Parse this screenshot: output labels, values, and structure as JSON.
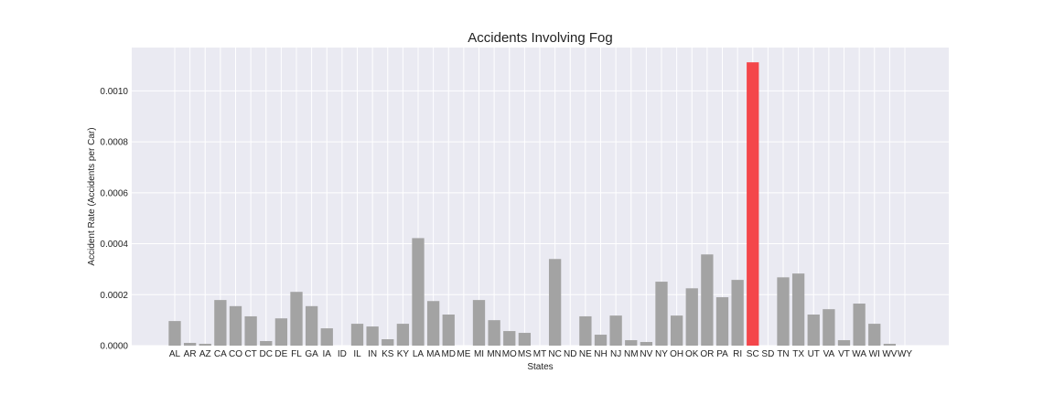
{
  "chart_data": {
    "type": "bar",
    "title": "Accidents Involving Fog",
    "xlabel": "States",
    "ylabel": "Accident Rate (Accidents per Car)",
    "ylim": [
      0,
      0.00117
    ],
    "yticks": [
      0,
      0.0002,
      0.0004,
      0.0006,
      0.0008,
      0.001
    ],
    "ytick_labels": [
      "0.0000",
      "0.0002",
      "0.0004",
      "0.0006",
      "0.0008",
      "0.0010"
    ],
    "grid": true,
    "categories": [
      "AL",
      "AR",
      "AZ",
      "CA",
      "CO",
      "CT",
      "DC",
      "DE",
      "FL",
      "GA",
      "IA",
      "ID",
      "IL",
      "IN",
      "KS",
      "KY",
      "LA",
      "MA",
      "MD",
      "ME",
      "MI",
      "MN",
      "MO",
      "MS",
      "MT",
      "NC",
      "ND",
      "NE",
      "NH",
      "NJ",
      "NM",
      "NV",
      "NY",
      "OH",
      "OK",
      "OR",
      "PA",
      "RI",
      "SC",
      "SD",
      "TN",
      "TX",
      "UT",
      "VA",
      "VT",
      "WA",
      "WI",
      "WV",
      "WY"
    ],
    "values": [
      9.65e-05,
      1.07e-05,
      7.1e-06,
      0.000179,
      0.000155,
      0.000115,
      1.79e-05,
      0.000107,
      0.000211,
      0.000155,
      6.79e-05,
      0,
      8.58e-05,
      7.51e-05,
      2.51e-05,
      8.58e-05,
      0.000422,
      0.000175,
      0.000122,
      0,
      0.000179,
      9.99e-05,
      5.72e-05,
      5.01e-05,
      0,
      0.00034,
      0,
      0.000115,
      4.29e-05,
      0.000118,
      2.14e-05,
      1.43e-05,
      0.000251,
      0.000118,
      0.000225,
      0.000358,
      0.00019,
      0.000258,
      0.001112,
      0,
      0.000268,
      0.000283,
      0.000122,
      0.000143,
      2.14e-05,
      0.000165,
      8.58e-05,
      7.1e-06,
      0
    ],
    "highlight_category": "SC",
    "colors": {
      "bar": "#a3a3a3",
      "highlight": "#f4464a",
      "plot_background": "#eaeaf2",
      "grid": "#ffffff",
      "text": "#222222"
    }
  }
}
